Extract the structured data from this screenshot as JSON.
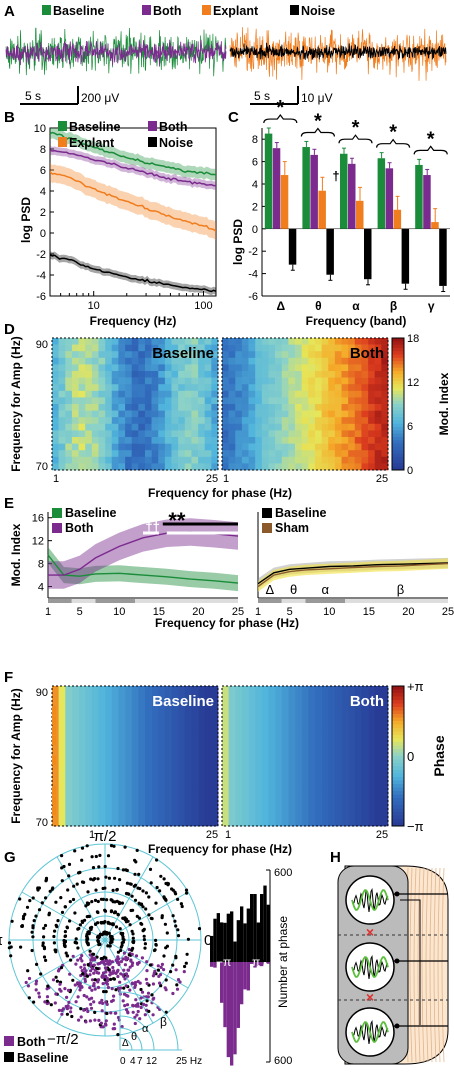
{
  "panels": {
    "A": "A",
    "B": "B",
    "C": "C",
    "D": "D",
    "E": "E",
    "F": "F",
    "G": "G",
    "H": "H"
  },
  "colors": {
    "baseline": "#1a8c3a",
    "both": "#7b2a8e",
    "explant": "#f07d1e",
    "noise": "#000000",
    "sham": "#8a5a2b",
    "cyan": "#5fc6d6"
  },
  "panelA": {
    "legend": [
      "Baseline",
      "Both",
      "Explant",
      "Noise"
    ],
    "scale_left": {
      "time": "5 s",
      "amp": "200 μV"
    },
    "scale_right": {
      "time": "5 s",
      "amp": "10 μV"
    }
  },
  "chart_data": [
    {
      "type": "line",
      "id": "B",
      "xlabel": "Frequency (Hz)",
      "ylabel": "log PSD",
      "xscale": "log",
      "xlim": [
        4,
        130
      ],
      "ylim": [
        -6,
        10
      ],
      "xticks": [
        "10",
        "100"
      ],
      "yticks": [
        "-6",
        "-4",
        "-2",
        "0",
        "2",
        "4",
        "6",
        "8",
        "10"
      ],
      "legend": [
        "Baseline",
        "Both",
        "Explant",
        "Noise"
      ],
      "x": [
        4,
        6,
        10,
        20,
        40,
        60,
        100,
        130
      ],
      "series": [
        {
          "name": "Baseline",
          "values": [
            9.6,
            9.0,
            8.2,
            7.2,
            6.4,
            6.0,
            5.7,
            5.5
          ]
        },
        {
          "name": "Both",
          "values": [
            7.9,
            7.6,
            7.0,
            6.2,
            5.4,
            5.0,
            4.7,
            4.5
          ]
        },
        {
          "name": "Explant",
          "values": [
            5.8,
            5.3,
            4.2,
            3.0,
            1.9,
            1.3,
            0.7,
            0.2
          ]
        },
        {
          "name": "Noise",
          "values": [
            -2.1,
            -2.6,
            -3.4,
            -4.2,
            -4.8,
            -5.1,
            -5.4,
            -5.5
          ]
        }
      ]
    },
    {
      "type": "bar",
      "id": "C",
      "xlabel": "Frequency (band)",
      "ylabel": "log PSD",
      "ylim": [
        -6,
        9
      ],
      "yticks": [
        "-6",
        "-4",
        "-2",
        "0",
        "2",
        "4",
        "6",
        "8"
      ],
      "categories": [
        "Δ",
        "θ",
        "α",
        "β",
        "γ"
      ],
      "series": [
        {
          "name": "Baseline",
          "values": [
            8.5,
            7.3,
            6.7,
            6.3,
            5.7
          ]
        },
        {
          "name": "Both",
          "values": [
            7.2,
            6.6,
            5.8,
            5.4,
            4.8
          ]
        },
        {
          "name": "Explant",
          "values": [
            4.8,
            3.4,
            2.5,
            1.7,
            0.6
          ]
        },
        {
          "name": "Noise",
          "values": [
            -3.2,
            -4.1,
            -4.5,
            -4.9,
            -5.1
          ]
        }
      ],
      "sig": [
        "*",
        "*",
        "*",
        "*",
        "*"
      ],
      "dagger": "†"
    },
    {
      "type": "heatmap",
      "id": "D",
      "xlabel": "Frequency for phase (Hz)",
      "ylabel": "Frequency for Amp (Hz)",
      "xticks": [
        "1",
        "25"
      ],
      "yticks": [
        "70",
        "90"
      ],
      "maps": [
        "Baseline",
        "Both"
      ],
      "colorbar": {
        "label": "Mod. Index",
        "ticks": [
          "0",
          "6",
          "12",
          "18"
        ],
        "range": [
          0,
          18
        ]
      }
    },
    {
      "type": "line",
      "id": "E",
      "xlabel": "Frequency for phase (Hz)",
      "ylabel": "Mod. Index",
      "ylim": [
        2,
        17
      ],
      "yticks": [
        "4",
        "8",
        "12",
        "16"
      ],
      "xticks": [
        "1",
        "5",
        "10",
        "15",
        "20",
        "25"
      ],
      "legend_left": [
        "Baseline",
        "Both"
      ],
      "legend_right": [
        "Baseline",
        "Sham"
      ],
      "band_labels": [
        "Δ",
        "θ",
        "α",
        "β"
      ],
      "sig_marks": [
        "††",
        "**"
      ],
      "x": [
        1,
        3,
        5,
        7,
        10,
        13,
        16,
        19,
        22,
        25
      ],
      "series": [
        {
          "name": "Baseline",
          "values": [
            9.5,
            6.0,
            5.8,
            6.2,
            6.3,
            6.0,
            5.7,
            5.3,
            5.0,
            4.6
          ]
        },
        {
          "name": "Both",
          "values": [
            6.0,
            6.0,
            7.0,
            9.0,
            11.0,
            12.5,
            13.3,
            13.5,
            13.2,
            12.8
          ]
        },
        {
          "name": "Baseline",
          "values": [
            4.5,
            6.4,
            7.0,
            7.2,
            7.5,
            7.6,
            7.8,
            7.9,
            8.0,
            8.1
          ]
        },
        {
          "name": "Sham",
          "values": [
            4.0,
            6.0,
            6.6,
            6.9,
            7.1,
            7.3,
            7.5,
            7.6,
            7.8,
            8.0
          ]
        }
      ]
    },
    {
      "type": "heatmap",
      "id": "F",
      "xlabel": "Frequency for phase (Hz)",
      "ylabel": "Frequency for Amp (Hz)",
      "xticks": [
        "1",
        "25"
      ],
      "yticks": [
        "70",
        "90"
      ],
      "maps": [
        "Baseline",
        "Both"
      ],
      "colorbar": {
        "label": "Phase",
        "ticks": [
          "+π",
          "0",
          "−π"
        ]
      }
    },
    {
      "type": "scatter",
      "id": "G",
      "angle_labels": [
        "π/2",
        "π",
        "0",
        "−π/2"
      ],
      "band_labels": [
        "Δ",
        "θ",
        "α",
        "β"
      ],
      "radius_ticks": [
        "0",
        "4",
        "7",
        "12",
        "25 Hz"
      ],
      "legend": [
        "Both",
        "Baseline"
      ],
      "histogram": {
        "ylabel": "Number at phase",
        "yticks": [
          "600",
          "600"
        ],
        "xticks": [
          "−π",
          "π"
        ]
      }
    }
  ]
}
